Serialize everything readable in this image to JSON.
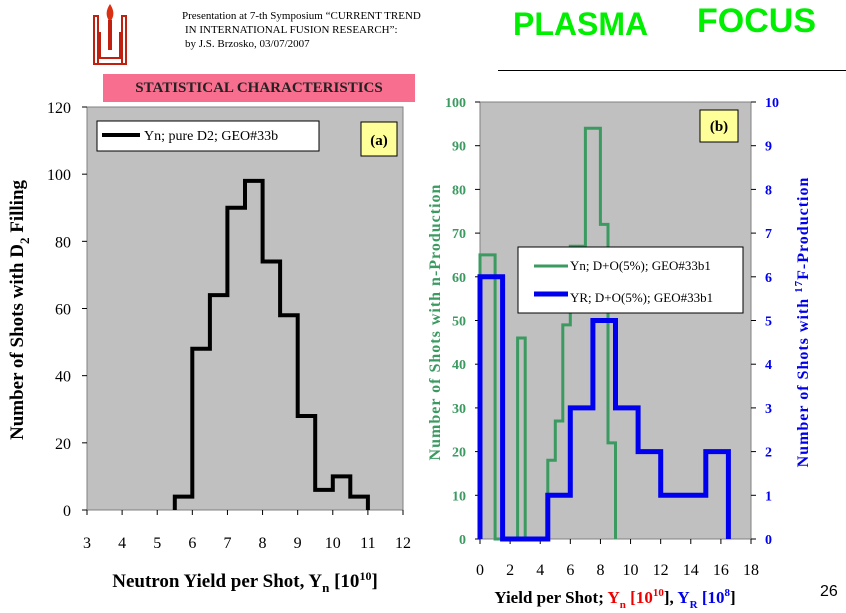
{
  "header": {
    "line1": "Presentation at 7-th Symposium “CURRENT TREND",
    "line2": "IN INTERNATIONAL FUSION RESEARCH”:",
    "line3": "by J.S. Brzosko, 03/07/2007",
    "title_word1": "PLASMA",
    "title_word2": "FOCUS",
    "badge": "STATISTICAL CHARACTERISTICS",
    "page_number": "26"
  },
  "colors": {
    "title": "#00ee00",
    "badge": "#f76e8e",
    "plot_bg": "#c0c0c0",
    "series_green": "#3a9a60",
    "series_blue": "#0000ee",
    "panel_label_bg": "#ffff99",
    "red_symbol": "#ee0000"
  },
  "icons": {
    "logo": "institute-logo-icon"
  },
  "chart_data": [
    {
      "type": "line",
      "step": true,
      "panel_label": "(a)",
      "ylabel_parts": [
        "Number of Shots with  D",
        "2",
        " Filling"
      ],
      "xlabel_parts": [
        "Neutron Yield per Shot, Y",
        "n",
        "  [10",
        "10",
        "]"
      ],
      "xlim": [
        3,
        12
      ],
      "ylim": [
        0,
        120
      ],
      "xticks": [
        "3",
        "4",
        "5",
        "6",
        "7",
        "8",
        "9",
        "10",
        "11",
        "12"
      ],
      "yticks": [
        "0",
        "20",
        "40",
        "60",
        "80",
        "100",
        "120"
      ],
      "grid": false,
      "legend_position": "top-left",
      "series": [
        {
          "name": "Yn; pure D2;  GEO#33b",
          "color": "#000000",
          "points": [
            [
              5.5,
              0
            ],
            [
              5.5,
              4
            ],
            [
              6,
              4
            ],
            [
              6,
              48
            ],
            [
              6.5,
              48
            ],
            [
              6.5,
              64
            ],
            [
              7,
              64
            ],
            [
              7,
              90
            ],
            [
              7.5,
              90
            ],
            [
              7.5,
              98
            ],
            [
              8,
              98
            ],
            [
              8,
              74
            ],
            [
              8.5,
              74
            ],
            [
              8.5,
              58
            ],
            [
              9,
              58
            ],
            [
              9,
              28
            ],
            [
              9.5,
              28
            ],
            [
              9.5,
              6
            ],
            [
              10,
              6
            ],
            [
              10,
              10
            ],
            [
              10.5,
              10
            ],
            [
              10.5,
              4
            ],
            [
              11,
              4
            ],
            [
              11,
              0
            ]
          ]
        }
      ]
    },
    {
      "type": "line",
      "step": true,
      "panel_label": "(b)",
      "ylabel_left": "Number of Shots with n-Production",
      "ylabel_right_parts": [
        "Number of Shots with ",
        "17",
        "F-Production"
      ],
      "xlabel_parts": [
        "Yield per Shot; ",
        "Y",
        "n",
        "  [10",
        "10",
        "], ",
        "Y",
        "R",
        "  [10",
        "8",
        "]"
      ],
      "xlim": [
        0,
        18
      ],
      "ylim_left": [
        0,
        100
      ],
      "ylim_right": [
        0,
        10
      ],
      "xticks": [
        "0",
        "2",
        "4",
        "6",
        "8",
        "10",
        "12",
        "14",
        "16",
        "18"
      ],
      "yticks_left": [
        "0",
        "10",
        "20",
        "30",
        "40",
        "50",
        "60",
        "70",
        "80",
        "90",
        "100"
      ],
      "yticks_right": [
        "0",
        "1",
        "2",
        "3",
        "4",
        "5",
        "6",
        "7",
        "8",
        "9",
        "10"
      ],
      "grid": false,
      "legend_position": "center-right",
      "series": [
        {
          "name": "Yn; D+O(5%); GEO#33b1",
          "color": "#3a9a60",
          "axis": "left",
          "points": [
            [
              0,
              0
            ],
            [
              0,
              65
            ],
            [
              1,
              65
            ],
            [
              1,
              0
            ],
            [
              2.5,
              0
            ],
            [
              2.5,
              46
            ],
            [
              3,
              46
            ],
            [
              3,
              0
            ],
            [
              4.5,
              0
            ],
            [
              4.5,
              18
            ],
            [
              5,
              18
            ],
            [
              5,
              27
            ],
            [
              5.5,
              27
            ],
            [
              5.5,
              49
            ],
            [
              6,
              49
            ],
            [
              6,
              67
            ],
            [
              7,
              67
            ],
            [
              7,
              94
            ],
            [
              8,
              94
            ],
            [
              8,
              72
            ],
            [
              8.5,
              72
            ],
            [
              8.5,
              22
            ],
            [
              9,
              22
            ],
            [
              9,
              0
            ]
          ]
        },
        {
          "name": "YR; D+O(5%); GEO#33b1",
          "color": "#0000ee",
          "axis": "right",
          "points": [
            [
              0,
              0
            ],
            [
              0,
              6
            ],
            [
              1.5,
              6
            ],
            [
              1.5,
              0
            ],
            [
              4.5,
              0
            ],
            [
              4.5,
              1
            ],
            [
              6,
              1
            ],
            [
              6,
              3
            ],
            [
              7.5,
              3
            ],
            [
              7.5,
              5
            ],
            [
              9,
              5
            ],
            [
              9,
              3
            ],
            [
              10.5,
              3
            ],
            [
              10.5,
              2
            ],
            [
              12,
              2
            ],
            [
              12,
              1
            ],
            [
              15,
              1
            ],
            [
              15,
              2
            ],
            [
              16.5,
              2
            ],
            [
              16.5,
              0
            ]
          ]
        }
      ]
    }
  ]
}
